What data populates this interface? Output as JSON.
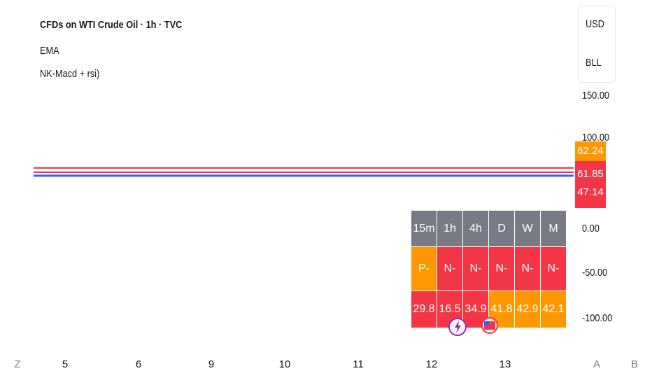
{
  "legend": {
    "title": "CFDs on WTI Crude Oil · 1h · TVC",
    "indicators": [
      "EMA",
      "NK-Macd + rsi)"
    ]
  },
  "currency_box": [
    "USD",
    "BLL"
  ],
  "price_axis": [
    "150.00",
    "100.00",
    "0.00",
    "-50.00",
    "-100.00"
  ],
  "badges": {
    "last": "62.24",
    "price": "61.85",
    "countdown": "47:14"
  },
  "table": {
    "header": [
      "15m",
      "1h",
      "4h",
      "D",
      "W",
      "M"
    ],
    "rows": [
      [
        "P-",
        "N-",
        "N-",
        "N-",
        "N-",
        "N-"
      ],
      [
        "29.8",
        "16.5",
        "34.9",
        "41.8",
        "42.9",
        "42.1"
      ]
    ]
  },
  "time_axis": [
    "Z",
    "5",
    "6",
    "9",
    "10",
    "11",
    "12",
    "13",
    "A",
    "B"
  ]
}
